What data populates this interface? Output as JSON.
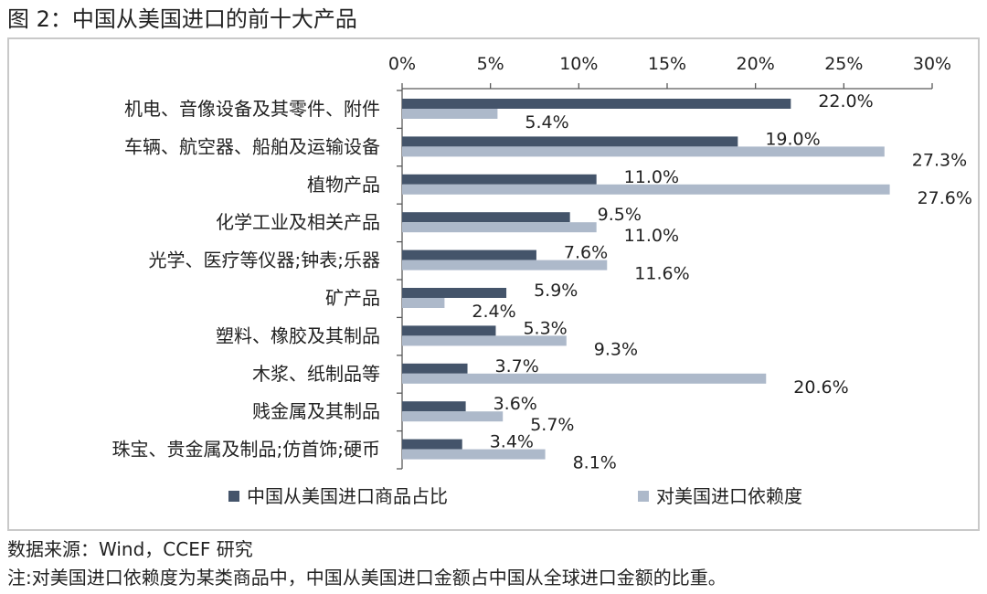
{
  "title": "图 2：中国从美国进口的前十大产品",
  "source": "数据来源：Wind，CCEF 研究",
  "footnote": "注:对美国进口依赖度为某类商品中，中国从美国进口金额占中国从全球进口金额的比重。",
  "colors": {
    "series_dark": "#44546a",
    "series_light": "#adb9ca",
    "axis": "#595959",
    "frame": "#c9c9c9"
  },
  "chart_data": {
    "type": "bar",
    "orientation": "horizontal",
    "x_axis_position": "top",
    "xlim": [
      0,
      30
    ],
    "x_ticks": [
      0,
      5,
      10,
      15,
      20,
      25,
      30
    ],
    "x_tick_labels": [
      "0%",
      "5%",
      "10%",
      "15%",
      "20%",
      "25%",
      "30%"
    ],
    "grid": false,
    "legend_position": "bottom",
    "categories": [
      "机电、音像设备及其零件、附件",
      "车辆、航空器、船舶及运输设备",
      "植物产品",
      "化学工业及相关产品",
      "光学、医疗等仪器;钟表;乐器",
      "矿产品",
      "塑料、橡胶及其制品",
      "木浆、纸制品等",
      "贱金属及其制品",
      "珠宝、贵金属及制品;仿首饰;硬币"
    ],
    "series": [
      {
        "name": "中国从美国进口商品占比",
        "values": [
          22.0,
          19.0,
          11.0,
          9.5,
          7.6,
          5.9,
          5.3,
          3.7,
          3.6,
          3.4
        ],
        "labels": [
          "22.0%",
          "19.0%",
          "11.0%",
          "9.5%",
          "7.6%",
          "5.9%",
          "5.3%",
          "3.7%",
          "3.6%",
          "3.4%"
        ],
        "color": "#44546a"
      },
      {
        "name": "对美国进口依赖度",
        "values": [
          5.4,
          27.3,
          27.6,
          11.0,
          11.6,
          2.4,
          9.3,
          20.6,
          5.7,
          8.1
        ],
        "labels": [
          "5.4%",
          "27.3%",
          "27.6%",
          "11.0%",
          "11.6%",
          "2.4%",
          "9.3%",
          "20.6%",
          "5.7%",
          "8.1%"
        ],
        "color": "#adb9ca"
      }
    ]
  }
}
